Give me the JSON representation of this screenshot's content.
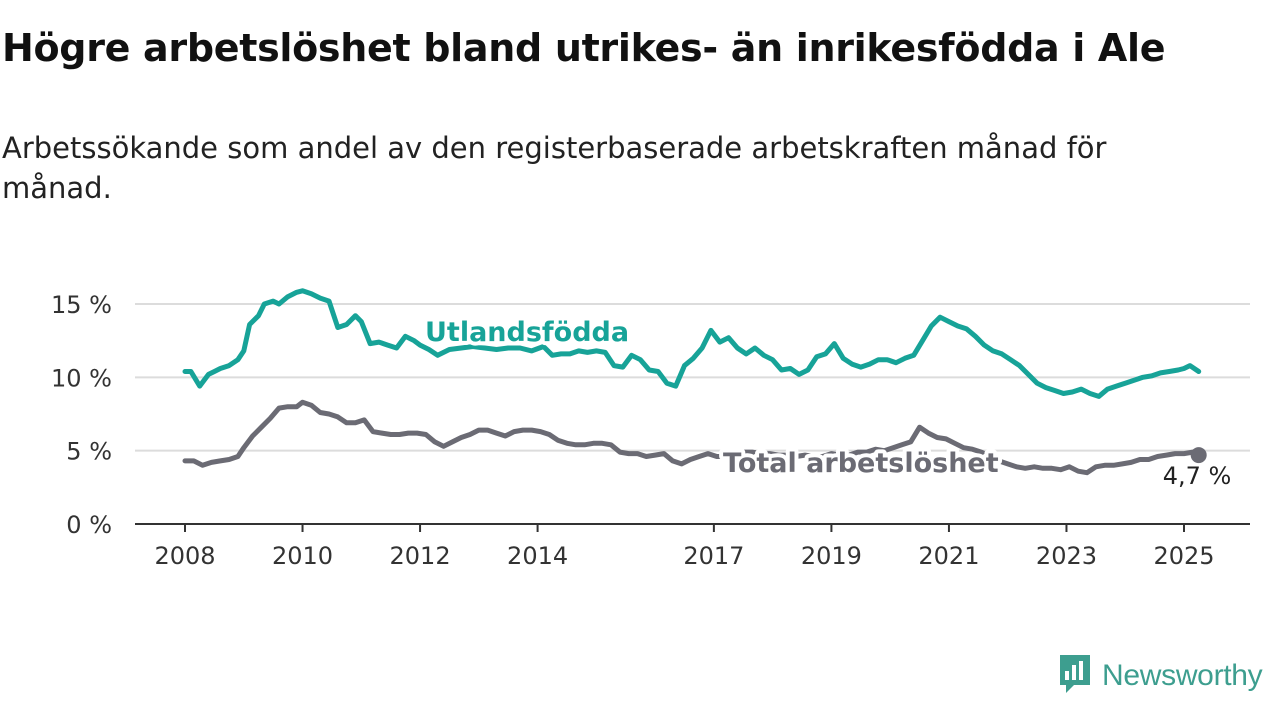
{
  "title": "Högre arbetslöshet bland utrikes- än inrikesfödda i Ale",
  "subtitle": "Arbetssökande som andel av den registerbaserade arbetskraften månad för månad.",
  "brand": {
    "name": "Newsworthy",
    "icon": "newsworthy-logo-icon"
  },
  "colors": {
    "foreign": "#17a398",
    "total": "#6b6b74",
    "grid": "#dcdcdc",
    "axis": "#333333",
    "brand": "#3d9e8f"
  },
  "chart_data": {
    "type": "line",
    "title": "Högre arbetslöshet bland utrikes- än inrikesfödda i Ale",
    "xlabel": "",
    "ylabel": "",
    "ylim": [
      0,
      17
    ],
    "xlim": [
      2007.6,
      2026.1
    ],
    "x_ticks": [
      2008,
      2010,
      2012,
      2014,
      2017,
      2019,
      2021,
      2023,
      2025
    ],
    "x_tick_labels": [
      "2008",
      "2010",
      "2012",
      "2014",
      "2017",
      "2019",
      "2021",
      "2023",
      "2025"
    ],
    "y_ticks": [
      0,
      5,
      10,
      15
    ],
    "y_tick_labels": [
      "0 %",
      "5 %",
      "10 %",
      "15 %"
    ],
    "grid": true,
    "series": [
      {
        "name": "Utlandsfödda",
        "label_text": "Utlandsfödda",
        "x": [
          2008.0,
          2008.1,
          2008.25,
          2008.4,
          2008.5,
          2008.6,
          2008.75,
          2008.9,
          2009.0,
          2009.1,
          2009.25,
          2009.35,
          2009.5,
          2009.6,
          2009.75,
          2009.9,
          2010.0,
          2010.15,
          2010.3,
          2010.45,
          2010.6,
          2010.75,
          2010.9,
          2011.0,
          2011.15,
          2011.3,
          2011.45,
          2011.6,
          2011.75,
          2011.9,
          2012.0,
          2012.15,
          2012.3,
          2012.5,
          2012.7,
          2012.9,
          2013.1,
          2013.3,
          2013.5,
          2013.7,
          2013.9,
          2014.1,
          2014.25,
          2014.4,
          2014.55,
          2014.7,
          2014.85,
          2015.0,
          2015.15,
          2015.3,
          2015.45,
          2015.6,
          2015.75,
          2015.9,
          2016.05,
          2016.2,
          2016.35,
          2016.5,
          2016.65,
          2016.8,
          2016.95,
          2017.1,
          2017.25,
          2017.4,
          2017.55,
          2017.7,
          2017.85,
          2018.0,
          2018.15,
          2018.3,
          2018.45,
          2018.6,
          2018.75,
          2018.9,
          2019.05,
          2019.2,
          2019.35,
          2019.5,
          2019.65,
          2019.8,
          2019.95,
          2020.1,
          2020.25,
          2020.4,
          2020.55,
          2020.7,
          2020.85,
          2021.0,
          2021.15,
          2021.3,
          2021.45,
          2021.6,
          2021.75,
          2021.9,
          2022.05,
          2022.2,
          2022.35,
          2022.5,
          2022.65,
          2022.8,
          2022.95,
          2023.1,
          2023.25,
          2023.4,
          2023.55,
          2023.7,
          2023.85,
          2024.0,
          2024.15,
          2024.3,
          2024.45,
          2024.6,
          2024.75,
          2024.9,
          2025.0,
          2025.1,
          2025.25
        ],
        "values": [
          10.4,
          10.4,
          9.4,
          10.2,
          10.4,
          10.6,
          10.8,
          11.2,
          11.8,
          13.6,
          14.2,
          15.0,
          15.2,
          15.0,
          15.5,
          15.8,
          15.9,
          15.7,
          15.4,
          15.2,
          13.4,
          13.6,
          14.2,
          13.8,
          12.3,
          12.4,
          12.2,
          12.0,
          12.8,
          12.5,
          12.2,
          11.9,
          11.5,
          11.9,
          12.0,
          12.1,
          12.0,
          11.9,
          12.0,
          12.0,
          11.8,
          12.1,
          11.5,
          11.6,
          11.6,
          11.8,
          11.7,
          11.8,
          11.7,
          10.8,
          10.7,
          11.5,
          11.2,
          10.5,
          10.4,
          9.6,
          9.4,
          10.8,
          11.3,
          12.0,
          13.2,
          12.4,
          12.7,
          12.0,
          11.6,
          12.0,
          11.5,
          11.2,
          10.5,
          10.6,
          10.2,
          10.5,
          11.4,
          11.6,
          12.3,
          11.3,
          10.9,
          10.7,
          10.9,
          11.2,
          11.2,
          11.0,
          11.3,
          11.5,
          12.5,
          13.5,
          14.1,
          13.8,
          13.5,
          13.3,
          12.8,
          12.2,
          11.8,
          11.6,
          11.2,
          10.8,
          10.2,
          9.6,
          9.3,
          9.1,
          8.9,
          9.0,
          9.2,
          8.9,
          8.7,
          9.2,
          9.4,
          9.6,
          9.8,
          10.0,
          10.1,
          10.3,
          10.4,
          10.5,
          10.6,
          10.8,
          10.4
        ]
      },
      {
        "name": "Total arbetslöshet",
        "label_text": "Total arbetslöshet",
        "end_value_label": "4,7 %",
        "x": [
          2008.0,
          2008.15,
          2008.3,
          2008.45,
          2008.6,
          2008.75,
          2008.9,
          2009.0,
          2009.15,
          2009.3,
          2009.45,
          2009.6,
          2009.75,
          2009.9,
          2010.0,
          2010.15,
          2010.3,
          2010.45,
          2010.6,
          2010.75,
          2010.9,
          2011.05,
          2011.2,
          2011.35,
          2011.5,
          2011.65,
          2011.8,
          2011.95,
          2012.1,
          2012.25,
          2012.4,
          2012.55,
          2012.7,
          2012.85,
          2013.0,
          2013.15,
          2013.3,
          2013.45,
          2013.6,
          2013.75,
          2013.9,
          2014.05,
          2014.2,
          2014.35,
          2014.5,
          2014.65,
          2014.8,
          2014.95,
          2015.1,
          2015.25,
          2015.4,
          2015.55,
          2015.7,
          2015.85,
          2016.0,
          2016.15,
          2016.3,
          2016.45,
          2016.6,
          2016.75,
          2016.9,
          2017.05,
          2017.2,
          2017.35,
          2017.5,
          2017.65,
          2017.8,
          2017.95,
          2018.1,
          2018.25,
          2018.4,
          2018.55,
          2018.7,
          2018.85,
          2019.0,
          2019.15,
          2019.3,
          2019.45,
          2019.6,
          2019.75,
          2019.9,
          2020.05,
          2020.2,
          2020.35,
          2020.5,
          2020.65,
          2020.8,
          2020.95,
          2021.1,
          2021.25,
          2021.4,
          2021.55,
          2021.7,
          2021.85,
          2022.0,
          2022.15,
          2022.3,
          2022.45,
          2022.6,
          2022.75,
          2022.9,
          2023.05,
          2023.2,
          2023.35,
          2023.5,
          2023.65,
          2023.8,
          2023.95,
          2024.1,
          2024.25,
          2024.4,
          2024.55,
          2024.7,
          2024.85,
          2025.0,
          2025.15,
          2025.25
        ],
        "values": [
          4.3,
          4.3,
          4.0,
          4.2,
          4.3,
          4.4,
          4.6,
          5.2,
          6.0,
          6.6,
          7.2,
          7.9,
          8.0,
          8.0,
          8.3,
          8.1,
          7.6,
          7.5,
          7.3,
          6.9,
          6.9,
          7.1,
          6.3,
          6.2,
          6.1,
          6.1,
          6.2,
          6.2,
          6.1,
          5.6,
          5.3,
          5.6,
          5.9,
          6.1,
          6.4,
          6.4,
          6.2,
          6.0,
          6.3,
          6.4,
          6.4,
          6.3,
          6.1,
          5.7,
          5.5,
          5.4,
          5.4,
          5.5,
          5.5,
          5.4,
          4.9,
          4.8,
          4.8,
          4.6,
          4.7,
          4.8,
          4.3,
          4.1,
          4.4,
          4.6,
          4.8,
          4.6,
          4.6,
          4.8,
          4.9,
          4.9,
          4.8,
          4.8,
          4.7,
          4.7,
          4.6,
          4.7,
          4.6,
          4.6,
          4.8,
          4.7,
          4.7,
          4.9,
          4.9,
          5.1,
          5.0,
          5.2,
          5.4,
          5.6,
          6.6,
          6.2,
          5.9,
          5.8,
          5.5,
          5.2,
          5.1,
          4.9,
          4.6,
          4.3,
          4.1,
          3.9,
          3.8,
          3.9,
          3.8,
          3.8,
          3.7,
          3.9,
          3.6,
          3.5,
          3.9,
          4.0,
          4.0,
          4.1,
          4.2,
          4.4,
          4.4,
          4.6,
          4.7,
          4.8,
          4.8,
          4.9,
          4.7
        ]
      }
    ]
  }
}
